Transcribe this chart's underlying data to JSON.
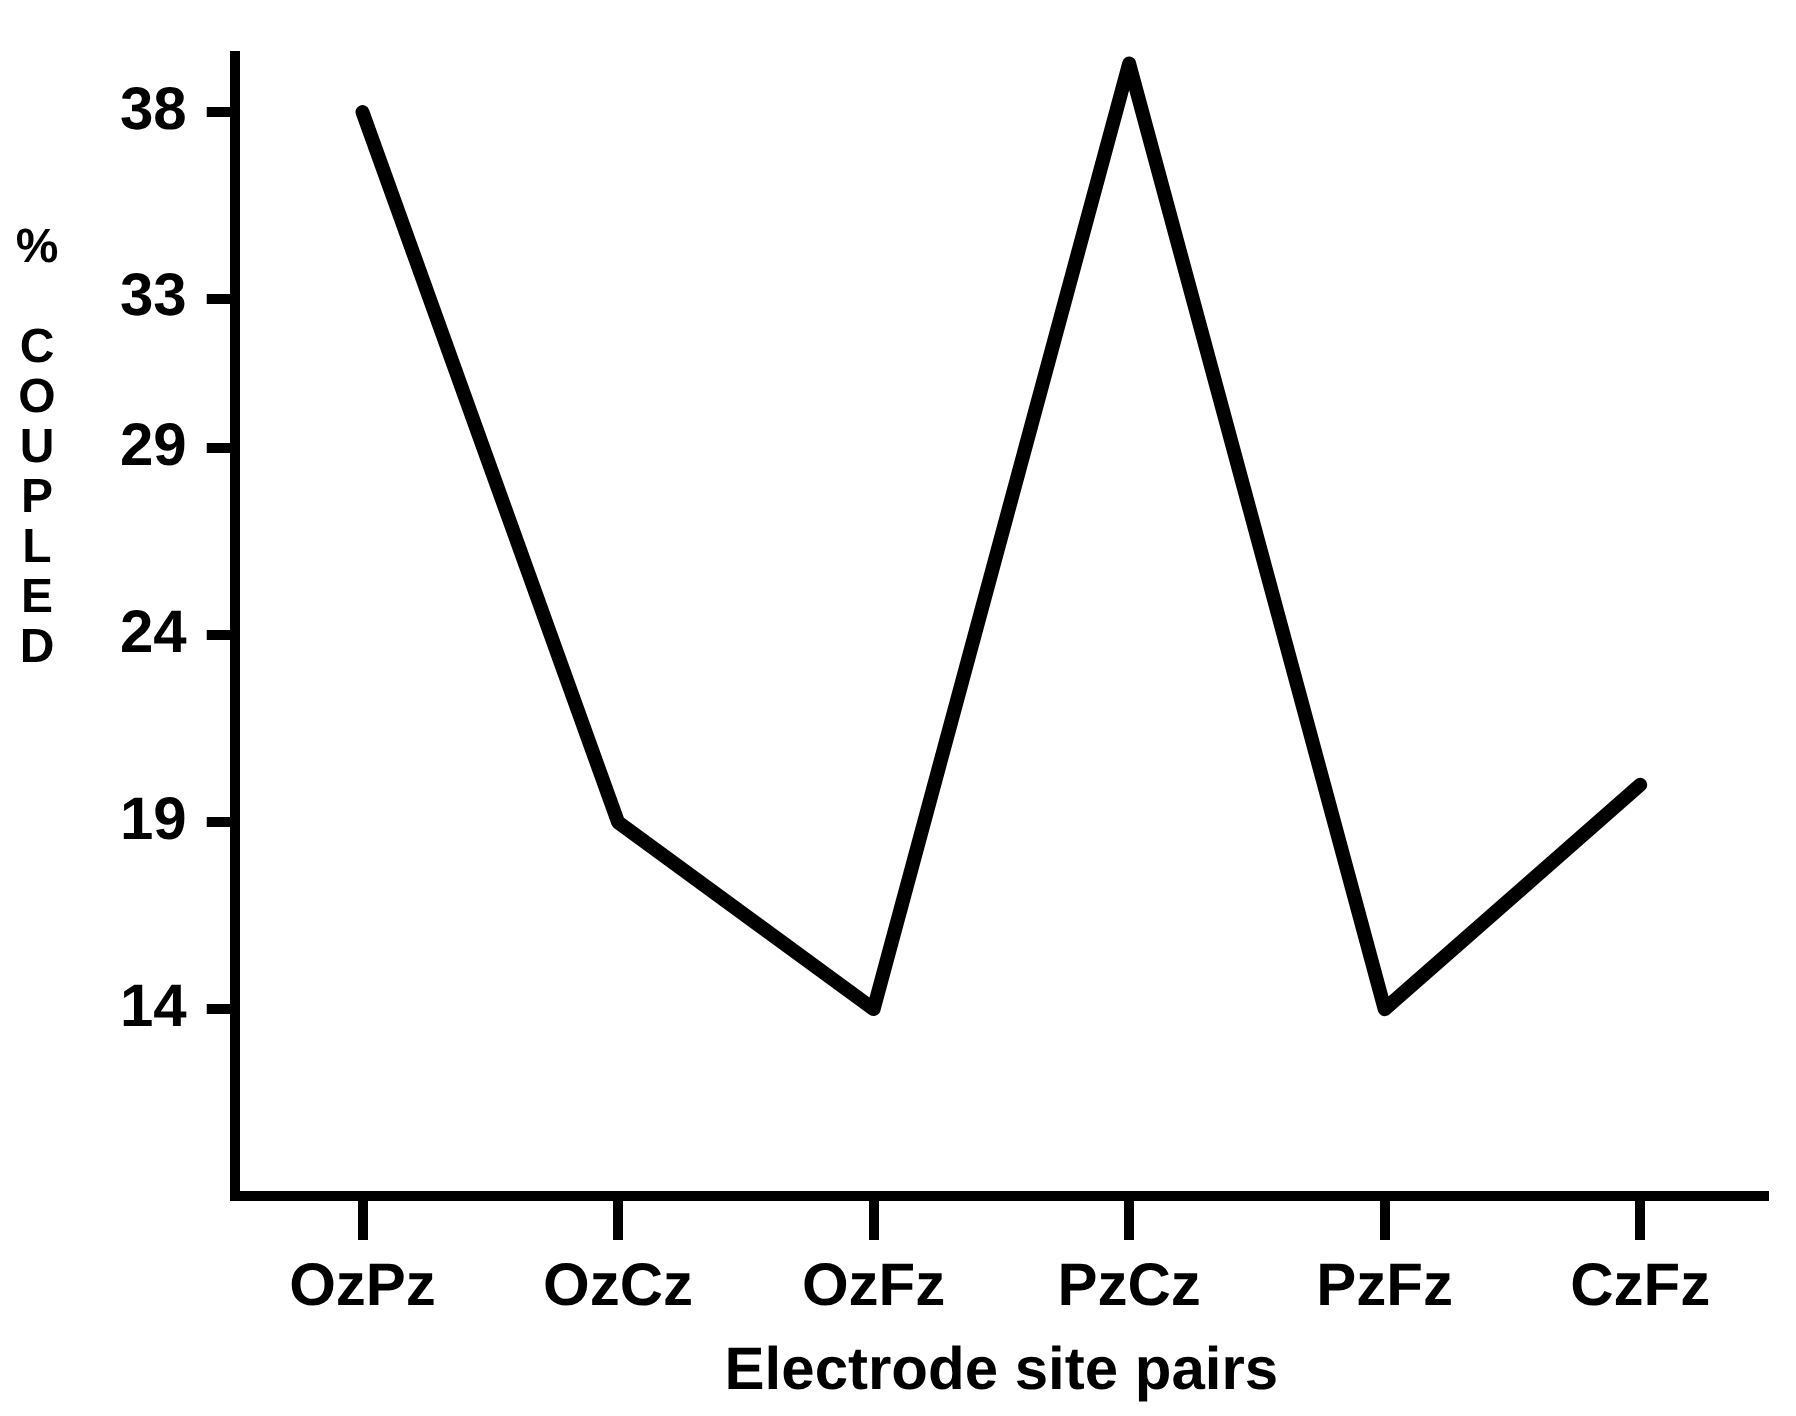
{
  "chart_data": {
    "type": "line",
    "xlabel": "Electrode site pairs",
    "ylabel": "% COUPLED",
    "categories": [
      "OzPz",
      "OzCz",
      "OzFz",
      "PzCz",
      "PzFz",
      "CzFz"
    ],
    "series": [
      {
        "color": "#000000",
        "values": [
          38,
          19,
          14,
          39.3,
          14,
          20
        ]
      }
    ],
    "ylim": [
      9,
      39.5
    ],
    "yticks": [
      14,
      19,
      24,
      29,
      33,
      38
    ],
    "grid": false,
    "legend": false,
    "marker": "none",
    "line_style": "solid"
  }
}
